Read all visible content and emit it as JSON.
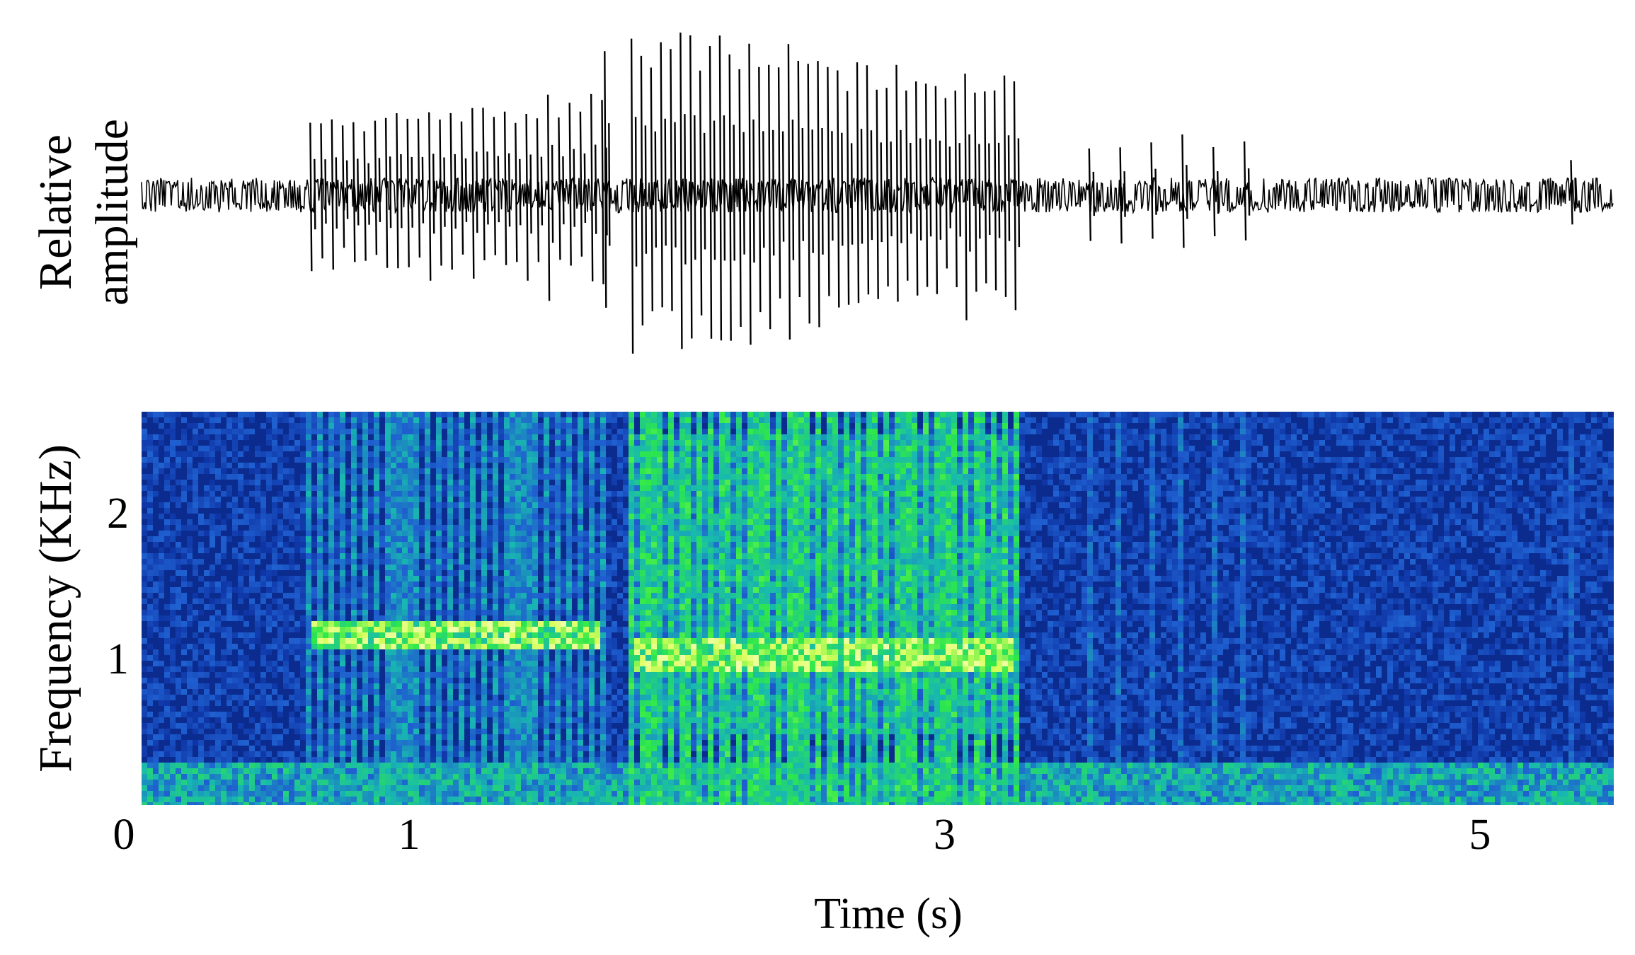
{
  "chart_data": [
    {
      "type": "line",
      "panel": "waveform",
      "ylabel_lines": [
        "Relative",
        "amplitude"
      ],
      "xlim": [
        0,
        5.5
      ],
      "ylim": [
        -1,
        1
      ],
      "baseline_noise": 0.08,
      "pulse_trains": [
        {
          "name": "",
          "start": 0.63,
          "end": 1.72,
          "count": 28,
          "amp_start": 0.42,
          "amp_end": 0.62
        },
        {
          "name": "",
          "start": 1.73,
          "end": 1.74,
          "count": 1,
          "amp_start": 0.98,
          "amp_end": 0.98
        },
        {
          "name": "",
          "start": 1.83,
          "end": 3.26,
          "count": 40,
          "amp_start": 0.98,
          "amp_end": 0.65
        },
        {
          "name": "",
          "start": 3.54,
          "end": 4.12,
          "count": 6,
          "amp_start": 0.3,
          "amp_end": 0.38
        },
        {
          "name": "",
          "start": 5.34,
          "end": 5.35,
          "count": 1,
          "amp_start": 0.25,
          "amp_end": 0.25
        }
      ]
    },
    {
      "type": "heatmap",
      "panel": "spectrogram",
      "ylabel": "Frequency (KHz)",
      "xlabel": "Time (s)",
      "xlim": [
        0,
        5.5
      ],
      "ylim": [
        0,
        2.7
      ],
      "xticks": [
        0,
        1,
        3,
        5
      ],
      "xtick_labels": [
        "0",
        "1",
        "3",
        "5"
      ],
      "yticks": [
        1,
        2
      ],
      "ytick_labels": [
        "1",
        "2"
      ],
      "colormap": [
        "#00004a",
        "#0a2a9a",
        "#1f5fd0",
        "#18b8b0",
        "#2ee84a",
        "#d8ff5a",
        "#ffffd0"
      ],
      "background_color": "#0b2c8e",
      "bands": [
        {
          "t_start": 0.63,
          "t_end": 1.72,
          "f_low": 1.05,
          "f_high": 1.25,
          "intensity": 0.95
        },
        {
          "t_start": 1.83,
          "t_end": 3.26,
          "f_low": 0.9,
          "f_high": 1.15,
          "intensity": 0.95
        },
        {
          "t_start": 1.83,
          "t_end": 3.26,
          "f_low": 0.5,
          "f_high": 2.55,
          "intensity": 0.55
        },
        {
          "t_start": 0.0,
          "t_end": 5.5,
          "f_low": 0.0,
          "f_high": 0.3,
          "intensity": 0.6
        }
      ]
    }
  ]
}
